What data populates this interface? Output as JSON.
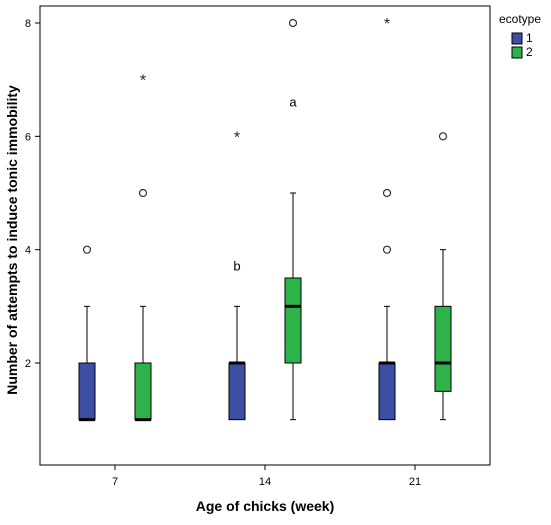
{
  "chart_data": {
    "type": "box",
    "xlabel": "Age of chicks (week)",
    "ylabel": "Number of attempts to induce tonic immobility",
    "ylim": [
      0.2,
      8.3
    ],
    "yticks": [
      2,
      4,
      6,
      8
    ],
    "categories": [
      "7",
      "14",
      "21"
    ],
    "legend": {
      "title": "ecotype",
      "position": "top-right"
    },
    "grid": false,
    "series": [
      {
        "name": "1",
        "color": "#3d4fa3",
        "boxes": [
          {
            "category": "7",
            "whisker_low": 1,
            "q1": 1,
            "median": 1,
            "q3": 2,
            "whisker_high": 3,
            "outliers": [
              4
            ],
            "extremes": []
          },
          {
            "category": "14",
            "whisker_low": 1,
            "q1": 1,
            "median": 2,
            "q3": 2,
            "whisker_high": 3,
            "outliers": [],
            "extremes": [
              6
            ]
          },
          {
            "category": "21",
            "whisker_low": 1,
            "q1": 1,
            "median": 2,
            "q3": 2,
            "whisker_high": 3,
            "outliers": [
              4,
              5
            ],
            "extremes": [
              8
            ]
          }
        ]
      },
      {
        "name": "2",
        "color": "#2db34a",
        "boxes": [
          {
            "category": "7",
            "whisker_low": 1,
            "q1": 1,
            "median": 1,
            "q3": 2,
            "whisker_high": 3,
            "outliers": [
              5
            ],
            "extremes": [
              7
            ]
          },
          {
            "category": "14",
            "whisker_low": 1,
            "q1": 2,
            "median": 3,
            "q3": 3.5,
            "whisker_high": 5,
            "outliers": [
              8
            ],
            "extremes": []
          },
          {
            "category": "21",
            "whisker_low": 1,
            "q1": 1.5,
            "median": 2,
            "q3": 3,
            "whisker_high": 4,
            "outliers": [
              6
            ],
            "extremes": []
          }
        ]
      }
    ],
    "annotations": [
      {
        "text": "b",
        "category": "14",
        "series": "1",
        "y": 3.7
      },
      {
        "text": "a",
        "category": "14",
        "series": "2",
        "y": 6.6
      }
    ]
  }
}
